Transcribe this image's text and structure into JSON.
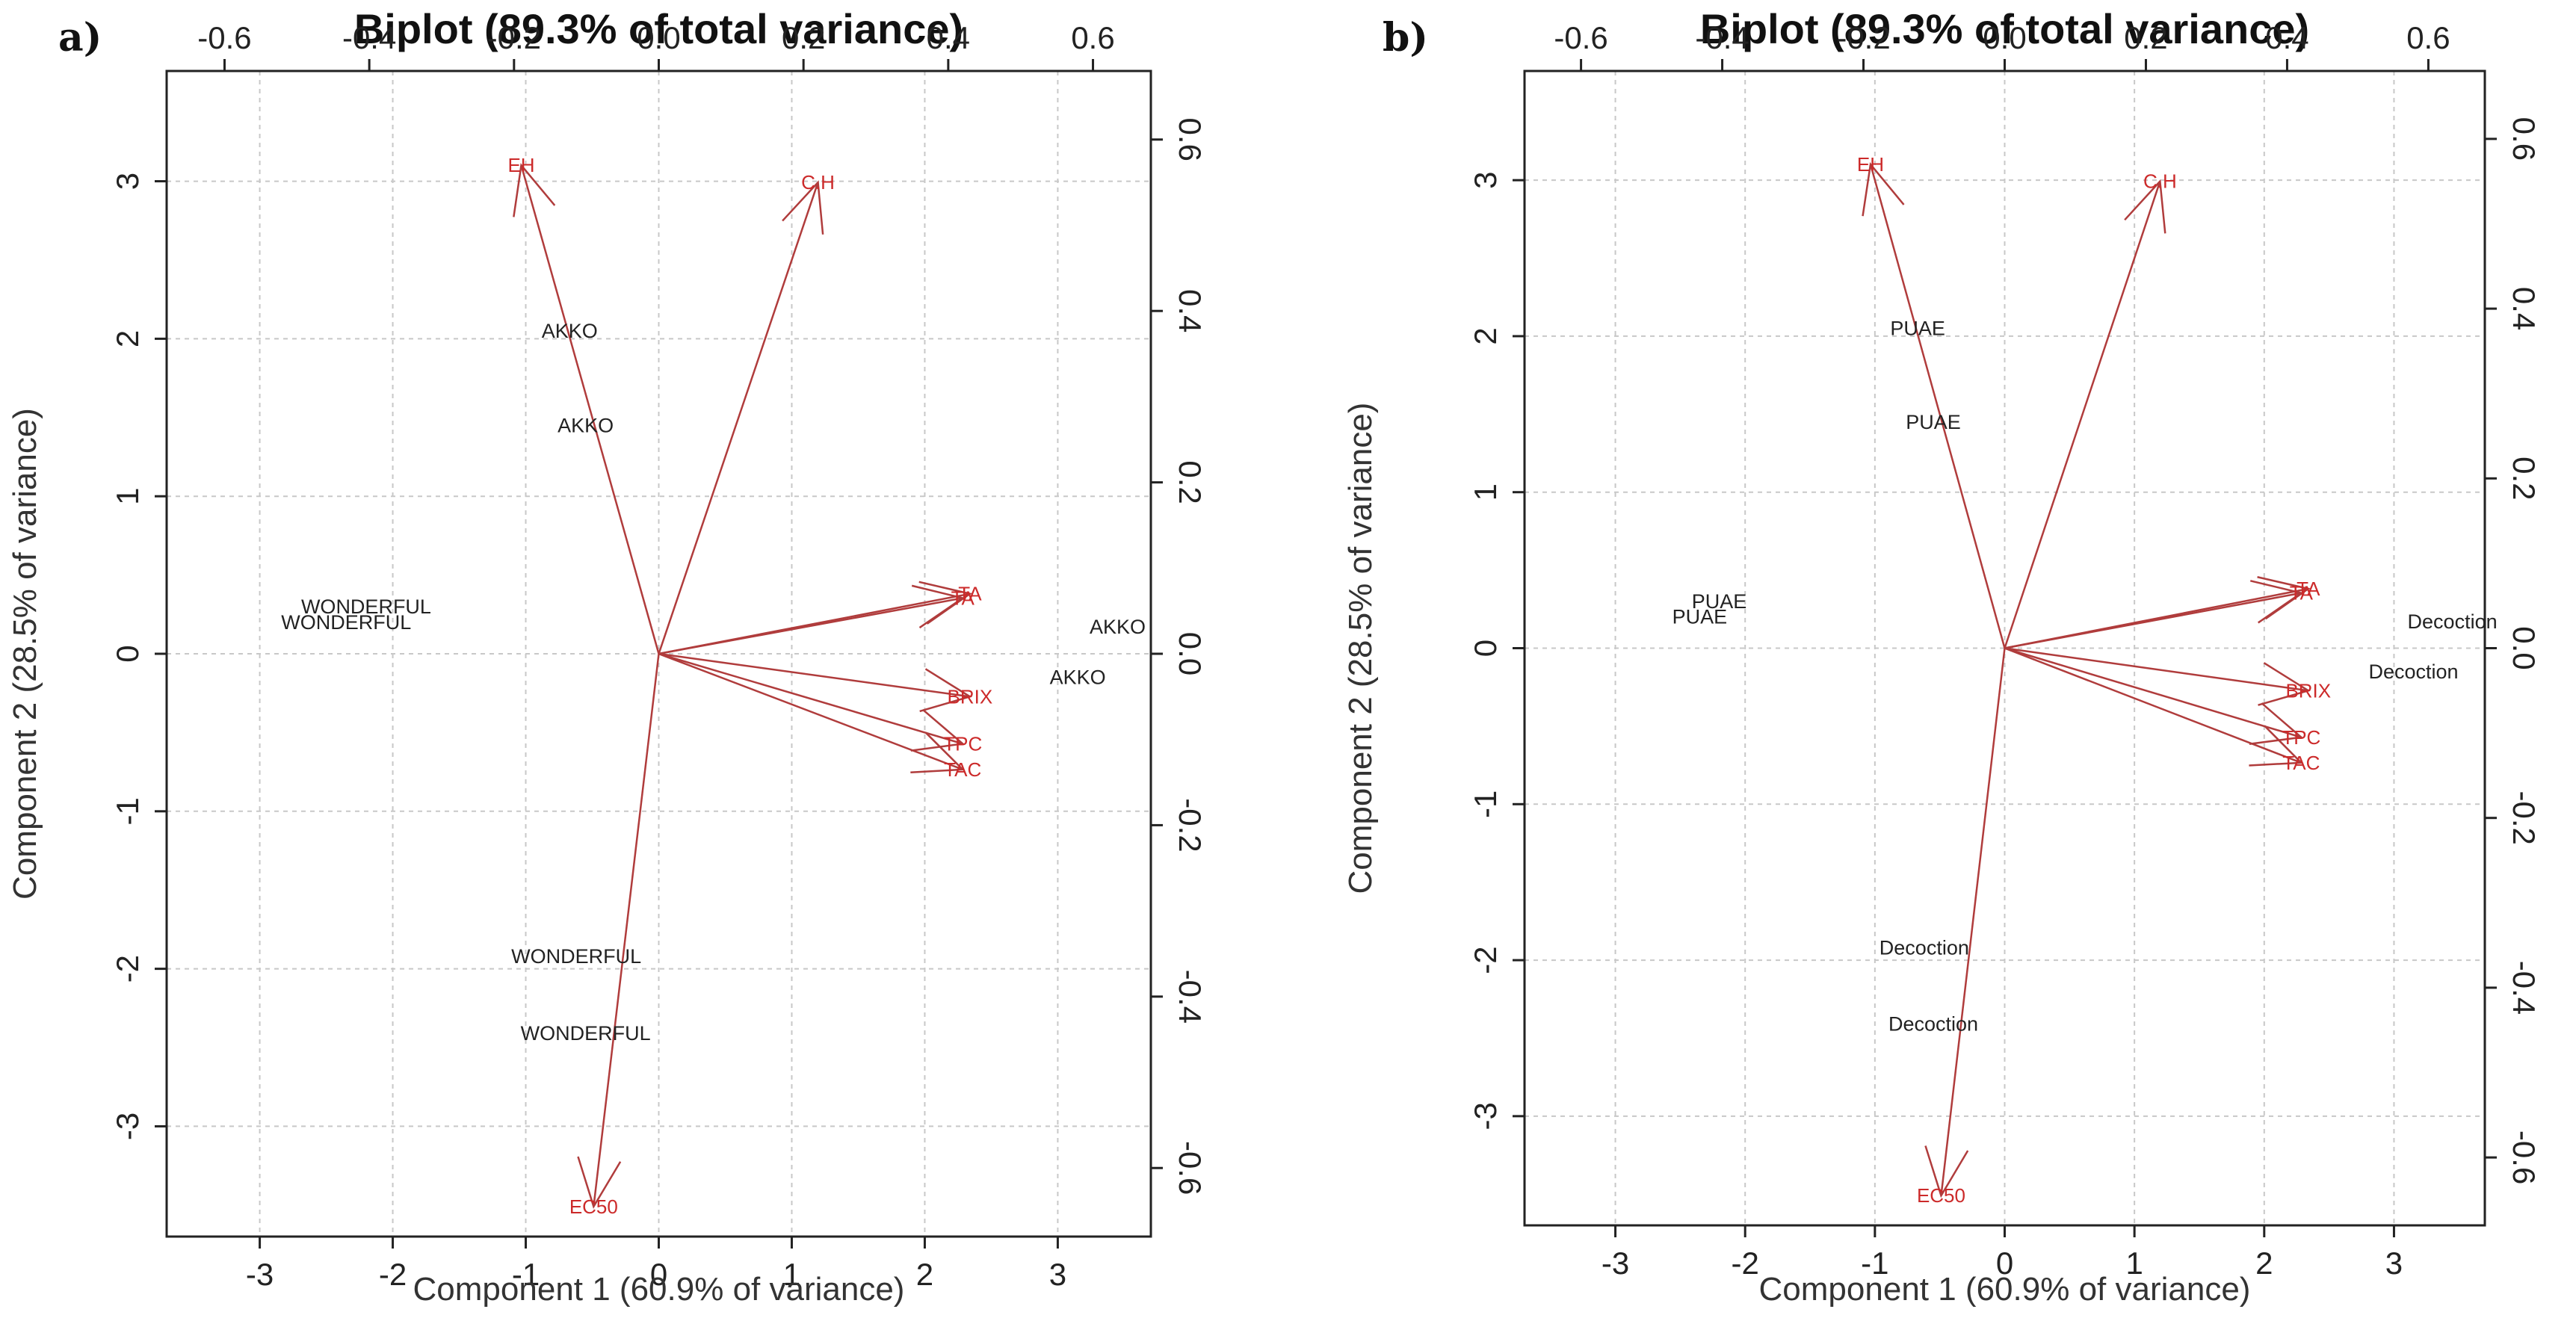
{
  "chart_data": [
    {
      "type": "scatter",
      "subtype": "biplot",
      "panel": "a)",
      "title": "Biplot (89.3% of total variance)",
      "xlabel": "Component 1 (60.9% of variance)",
      "ylabel": "Component 2 (28.5% of variance)",
      "xlim": [
        -3.7,
        3.7
      ],
      "ylim": [
        -3.7,
        3.7
      ],
      "xticks": [
        -3,
        -2,
        -1,
        0,
        1,
        2,
        3
      ],
      "xtick_labels": [
        "-3",
        "-2",
        "-1",
        "0",
        "1",
        "2",
        "3"
      ],
      "yticks": [
        -3,
        -2,
        -1,
        0,
        1,
        2,
        3
      ],
      "ytick_labels": [
        "-3",
        "-2",
        "-1",
        "0",
        "1",
        "2",
        "3"
      ],
      "secondary_xlim": [
        -0.68,
        0.68
      ],
      "secondary_xticks": [
        -0.6,
        -0.4,
        -0.2,
        0.0,
        0.2,
        0.4,
        0.6
      ],
      "secondary_xtick_labels": [
        "-0.6",
        "-0.4",
        "-0.2",
        "0.0",
        "0.2",
        "0.4",
        "0.6"
      ],
      "secondary_ylim": [
        -0.68,
        0.68
      ],
      "secondary_yticks": [
        -0.6,
        -0.4,
        -0.2,
        0.0,
        0.2,
        0.4,
        0.6
      ],
      "secondary_ytick_labels": [
        "-0.6",
        "-0.4",
        "-0.2",
        "0.0",
        "0.2",
        "0.4",
        "0.6"
      ],
      "grid": true,
      "observations": [
        {
          "label": "AKKO",
          "x": -0.67,
          "y": 2.05
        },
        {
          "label": "AKKO",
          "x": -0.55,
          "y": 1.45
        },
        {
          "label": "WONDERFUL",
          "x": -2.2,
          "y": 0.3
        },
        {
          "label": "WONDERFUL",
          "x": -2.35,
          "y": 0.2
        },
        {
          "label": "AKKO",
          "x": 3.45,
          "y": 0.17
        },
        {
          "label": "AKKO",
          "x": 3.15,
          "y": -0.15
        },
        {
          "label": "WONDERFUL",
          "x": -0.62,
          "y": -1.92
        },
        {
          "label": "WONDERFUL",
          "x": -0.55,
          "y": -2.41
        }
      ],
      "loadings": [
        {
          "label": "EH",
          "x": -0.19,
          "y": 0.57
        },
        {
          "label": "C.H",
          "x": 0.22,
          "y": 0.55
        },
        {
          "label": "TA",
          "x": 0.42,
          "y": 0.065
        },
        {
          "label": "TA",
          "x": 0.43,
          "y": 0.07
        },
        {
          "label": "BRIX",
          "x": 0.43,
          "y": -0.05
        },
        {
          "label": "TPC",
          "x": 0.42,
          "y": -0.105
        },
        {
          "label": "TAC",
          "x": 0.42,
          "y": -0.135
        },
        {
          "label": "EC50",
          "x": -0.09,
          "y": -0.645
        }
      ]
    },
    {
      "type": "scatter",
      "subtype": "biplot",
      "panel": "b)",
      "title": "Biplot (89.3% of total variance)",
      "xlabel": "Component 1 (60.9% of variance)",
      "ylabel": "Component 2 (28.5% of variance)",
      "xlim": [
        -3.7,
        3.7
      ],
      "ylim": [
        -3.7,
        3.7
      ],
      "xticks": [
        -3,
        -2,
        -1,
        0,
        1,
        2,
        3
      ],
      "xtick_labels": [
        "-3",
        "-2",
        "-1",
        "0",
        "1",
        "2",
        "3"
      ],
      "yticks": [
        -3,
        -2,
        -1,
        0,
        1,
        2,
        3
      ],
      "ytick_labels": [
        "-3",
        "-2",
        "-1",
        "0",
        "1",
        "2",
        "3"
      ],
      "secondary_xlim": [
        -0.68,
        0.68
      ],
      "secondary_xticks": [
        -0.6,
        -0.4,
        -0.2,
        0.0,
        0.2,
        0.4,
        0.6
      ],
      "secondary_xtick_labels": [
        "-0.6",
        "-0.4",
        "-0.2",
        "0.0",
        "0.2",
        "0.4",
        "0.6"
      ],
      "secondary_ylim": [
        -0.68,
        0.68
      ],
      "secondary_yticks": [
        -0.6,
        -0.4,
        -0.2,
        0.0,
        0.2,
        0.4,
        0.6
      ],
      "secondary_ytick_labels": [
        "-0.6",
        "-0.4",
        "-0.2",
        "0.0",
        "0.2",
        "0.4",
        "0.6"
      ],
      "grid": true,
      "observations": [
        {
          "label": "PUAE",
          "x": -0.67,
          "y": 2.05
        },
        {
          "label": "PUAE",
          "x": -0.55,
          "y": 1.45
        },
        {
          "label": "PUAE",
          "x": -2.2,
          "y": 0.3
        },
        {
          "label": "PUAE",
          "x": -2.35,
          "y": 0.2
        },
        {
          "label": "Decoction",
          "x": 3.45,
          "y": 0.17
        },
        {
          "label": "Decoction",
          "x": 3.15,
          "y": -0.15
        },
        {
          "label": "Decoction",
          "x": -0.62,
          "y": -1.92
        },
        {
          "label": "Decoction",
          "x": -0.55,
          "y": -2.41
        }
      ],
      "loadings": [
        {
          "label": "EH",
          "x": -0.19,
          "y": 0.57
        },
        {
          "label": "C.H",
          "x": 0.22,
          "y": 0.55
        },
        {
          "label": "TA",
          "x": 0.42,
          "y": 0.065
        },
        {
          "label": "TA",
          "x": 0.43,
          "y": 0.07
        },
        {
          "label": "BRIX",
          "x": 0.43,
          "y": -0.05
        },
        {
          "label": "TPC",
          "x": 0.42,
          "y": -0.105
        },
        {
          "label": "TAC",
          "x": 0.42,
          "y": -0.135
        },
        {
          "label": "EC50",
          "x": -0.09,
          "y": -0.645
        }
      ]
    }
  ]
}
